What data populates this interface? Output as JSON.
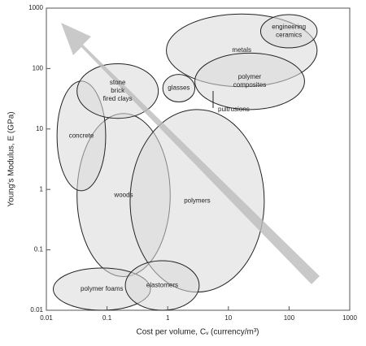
{
  "chart_data": {
    "type": "ashby",
    "xlabel": "Cost per volume, Cᵥ (currency/m³)",
    "ylabel": "Young's Modulus, E (GPa)",
    "xscale": "log",
    "yscale": "log",
    "xlim": [
      0.01,
      1000
    ],
    "ylim": [
      0.01,
      1000
    ],
    "xticks": [
      0.01,
      0.1,
      1,
      10,
      100,
      1000
    ],
    "yticks": [
      0.01,
      0.1,
      1,
      10,
      100,
      1000
    ],
    "color": "#d9d9d9",
    "regions": [
      {
        "label": [
          "woods"
        ],
        "xrange": [
          0.032,
          1.1
        ],
        "yrange": [
          0.036,
          18
        ]
      },
      {
        "label": [
          "polymers"
        ],
        "xrange": [
          0.24,
          39
        ],
        "yrange": [
          0.02,
          21
        ]
      },
      {
        "label": [
          "concrete"
        ],
        "xrange": [
          0.015,
          0.095
        ],
        "yrange": [
          0.95,
          62
        ]
      },
      {
        "label": [
          "stone",
          "brick",
          "fired clays"
        ],
        "xrange": [
          0.032,
          0.7
        ],
        "yrange": [
          15,
          120
        ]
      },
      {
        "label": [
          "metals"
        ],
        "xrange": [
          0.95,
          290
        ],
        "yrange": [
          50,
          800
        ]
      },
      {
        "label": [
          "engineering",
          "ceramics"
        ],
        "xrange": [
          34,
          290
        ],
        "yrange": [
          220,
          780
        ]
      },
      {
        "label": [
          "polymer",
          "composites"
        ],
        "xrange": [
          2.8,
          180
        ],
        "yrange": [
          21,
          180
        ]
      },
      {
        "label": [
          "glasses"
        ],
        "xrange": [
          0.83,
          2.8
        ],
        "yrange": [
          28,
          80
        ]
      },
      {
        "label": [
          "polymer foams"
        ],
        "xrange": [
          0.013,
          0.52
        ],
        "yrange": [
          0.01,
          0.05
        ]
      },
      {
        "label": [
          "elastomers"
        ],
        "xrange": [
          0.2,
          3.3
        ],
        "yrange": [
          0.01,
          0.066
        ]
      }
    ],
    "annotations": [
      "pultrusions"
    ]
  }
}
